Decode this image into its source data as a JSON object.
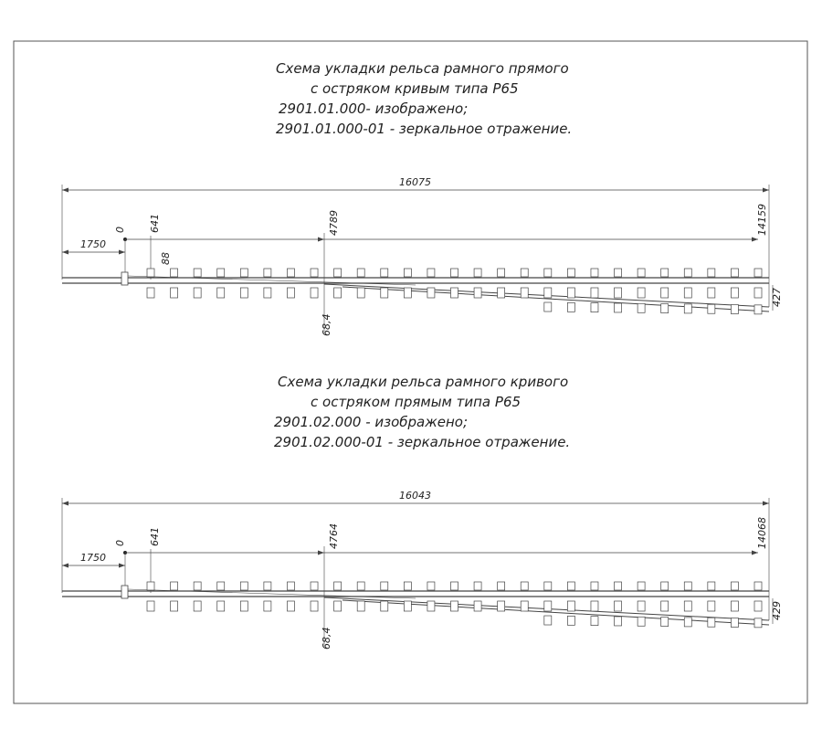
{
  "schemes": [
    {
      "title_lines": [
        "Схема укладки рельса рамного прямого",
        "с остряком кривым типа Р65",
        "2901.01.000- изображено;",
        "2901.01.000-01 - зеркальное отражение."
      ],
      "dimensions": {
        "total": "16075",
        "zero": "0",
        "start": "641",
        "lead": "1750",
        "mid": "4789",
        "end": "14159",
        "tie": "88",
        "offset": "68,4",
        "gap": "427"
      }
    },
    {
      "title_lines": [
        "Схема укладки рельса рамного кривого",
        "с остряком прямым типа Р65",
        "2901.02.000 - изображено;",
        "2901.02.000-01 - зеркальное отражение."
      ],
      "dimensions": {
        "total": "16043",
        "zero": "0",
        "start": "641",
        "lead": "1750",
        "mid": "4764",
        "end": "14068",
        "offset": "68,4",
        "gap": "429"
      }
    }
  ]
}
